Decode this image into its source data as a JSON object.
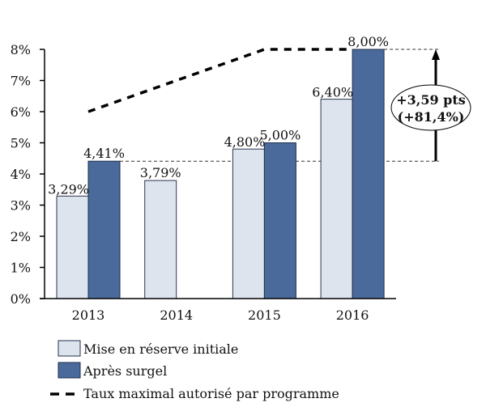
{
  "chart_data": {
    "type": "bar",
    "title": "",
    "xlabel": "",
    "ylabel": "",
    "categories": [
      "2013",
      "2014",
      "2015",
      "2016"
    ],
    "ylim": [
      0,
      8
    ],
    "yticks": [
      0,
      1,
      2,
      3,
      4,
      5,
      6,
      7,
      8
    ],
    "ytick_labels": [
      "0%",
      "1%",
      "2%",
      "3%",
      "4%",
      "5%",
      "6%",
      "7%",
      "8%"
    ],
    "grid": false,
    "legend_position": "bottom-left",
    "series": [
      {
        "name": "Mise en réserve initiale",
        "kind": "bar",
        "color": "#DEE4EE",
        "values": [
          3.29,
          3.79,
          4.8,
          6.4
        ],
        "labels": [
          "3,29%",
          "3,79%",
          "4,80%",
          "6,40%"
        ]
      },
      {
        "name": "Après surgel",
        "kind": "bar",
        "color": "#4A6A9B",
        "values": [
          4.41,
          null,
          5.0,
          8.0
        ],
        "labels": [
          "4,41%",
          "",
          "5,00%",
          "8,00%"
        ]
      },
      {
        "name": "Taux maximal autorisé par programme",
        "kind": "line",
        "style": "dashed",
        "color": "#000000",
        "values": [
          6,
          7,
          8,
          8
        ]
      }
    ],
    "annotation": {
      "from_value": 4.41,
      "to_value": 8.0,
      "line1": "+3,59 pts",
      "line2": "(+81,4%)"
    },
    "legend": [
      {
        "label": "Mise en réserve initiale",
        "swatch": "box-light"
      },
      {
        "label": "Après surgel",
        "swatch": "box-dark"
      },
      {
        "label": "Taux maximal autorisé par programme",
        "swatch": "dash"
      }
    ]
  }
}
